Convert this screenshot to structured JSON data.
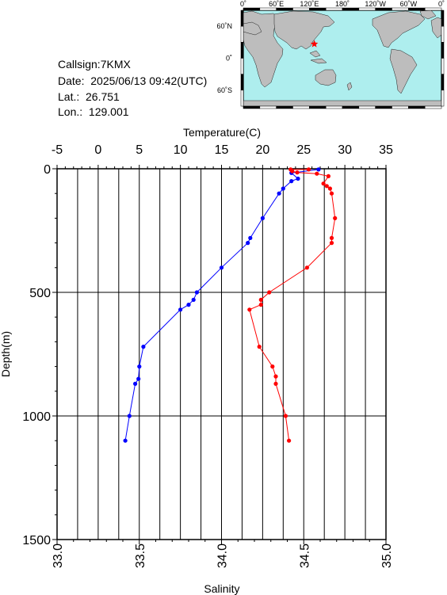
{
  "station": {
    "callsign_text": "Callsign:7KMX",
    "date_text": "Date:  2025/06/13 09:42(UTC)",
    "lat_text": "Lat.:  26.751",
    "lon_text": "Lon.:  129.001",
    "lat": 26.751,
    "lon": 129.001
  },
  "map": {
    "lon_ticks": [
      "0˚",
      "60˚E",
      "120˚E",
      "180˚",
      "120˚W",
      "60˚W",
      "0˚"
    ],
    "lat_ticks": [
      "60˚N",
      "0˚",
      "60˚S"
    ],
    "ocean_color": "#aeeeee",
    "land_color": "#bdbdbd",
    "marker_color": "#ff0000",
    "marker": "star-icon"
  },
  "chart_data": {
    "type": "line",
    "top_axis_label": "Temperature(C)",
    "bottom_axis_label": "Salinity",
    "ylabel": "Depth(m)",
    "temperature_range": [
      -5,
      35
    ],
    "temperature_ticks": [
      "-5",
      "0",
      "5",
      "10",
      "15",
      "20",
      "25",
      "30",
      "35"
    ],
    "salinity_range": [
      33.0,
      35.0
    ],
    "salinity_ticks": [
      "33.0",
      "33.5",
      "34.0",
      "34.5",
      "35.0"
    ],
    "depth_range": [
      0,
      1500
    ],
    "depth_ticks": [
      "0",
      "500",
      "1000",
      "1500"
    ],
    "grid": true,
    "series": [
      {
        "x_axis": "top",
        "color": "#0000ff",
        "depth": [
          3,
          17,
          40,
          50,
          80,
          100,
          200,
          280,
          300,
          400,
          500,
          530,
          550,
          570,
          720,
          800,
          850,
          870,
          1000,
          1100
        ],
        "temperature": [
          26.8,
          23.5,
          24.3,
          23.5,
          22.5,
          22.0,
          20.0,
          18.5,
          18.2,
          15.0,
          12.0,
          11.6,
          11.0,
          10.0,
          5.5,
          5.0,
          4.9,
          4.5,
          3.8,
          3.3
        ]
      },
      {
        "x_axis": "bottom",
        "color": "#ff0000",
        "depth": [
          3,
          3,
          10,
          15,
          20,
          30,
          60,
          70,
          80,
          100,
          200,
          280,
          300,
          400,
          500,
          530,
          550,
          570,
          720,
          800,
          840,
          870,
          1000,
          1100
        ],
        "salinity": [
          34.53,
          34.42,
          34.43,
          34.46,
          34.58,
          34.65,
          34.62,
          34.64,
          34.66,
          34.67,
          34.69,
          34.67,
          34.67,
          34.52,
          34.29,
          34.24,
          34.24,
          34.17,
          34.23,
          34.31,
          34.33,
          34.33,
          34.39,
          34.41
        ]
      }
    ]
  }
}
